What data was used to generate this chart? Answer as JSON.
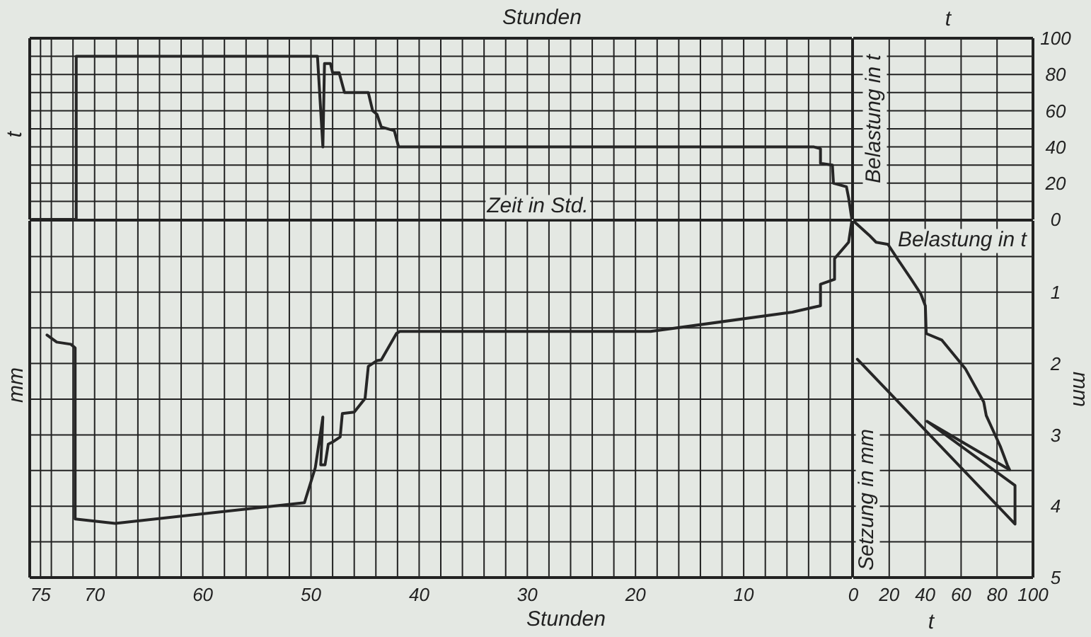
{
  "chart_data": [
    {
      "type": "line",
      "xlabel": "Stunden",
      "ylabel": "t",
      "annotations": [
        "Zeit in Std."
      ],
      "xlim": [
        76,
        0
      ],
      "ylim": [
        0,
        100
      ],
      "xticks": [
        {
          "value": 76,
          "label": null
        },
        75,
        {
          "value": 74,
          "label": null
        },
        {
          "value": 72,
          "label": null
        },
        70,
        {
          "value": 68,
          "label": null
        },
        {
          "value": 66,
          "label": null
        },
        {
          "value": 64,
          "label": null
        },
        {
          "value": 62,
          "label": null
        },
        60,
        {
          "value": 58,
          "label": null
        },
        {
          "value": 56,
          "label": null
        },
        {
          "value": 54,
          "label": null
        },
        {
          "value": 52,
          "label": null
        },
        50,
        {
          "value": 48,
          "label": null
        },
        {
          "value": 46,
          "label": null
        },
        {
          "value": 44,
          "label": null
        },
        {
          "value": 42,
          "label": null
        },
        40,
        {
          "value": 38,
          "label": null
        },
        {
          "value": 36,
          "label": null
        },
        {
          "value": 34,
          "label": null
        },
        {
          "value": 32,
          "label": null
        },
        30,
        {
          "value": 28,
          "label": null
        },
        {
          "value": 26,
          "label": null
        },
        {
          "value": 24,
          "label": null
        },
        {
          "value": 22,
          "label": null
        },
        20,
        {
          "value": 18,
          "label": null
        },
        {
          "value": 16,
          "label": null
        },
        {
          "value": 14,
          "label": null
        },
        {
          "value": 12,
          "label": null
        },
        10,
        {
          "value": 8,
          "label": null
        },
        {
          "value": 6,
          "label": null
        },
        {
          "value": 4,
          "label": null
        },
        {
          "value": 2,
          "label": null
        },
        {
          "value": 0,
          "label": null
        }
      ],
      "yticks": [
        0,
        {
          "value": 10,
          "label": null
        },
        20,
        {
          "value": 30,
          "label": null
        },
        40,
        {
          "value": 50,
          "label": null
        },
        60,
        {
          "value": 70,
          "label": null
        },
        80,
        {
          "value": 90,
          "label": null
        },
        100
      ],
      "grid": true,
      "tick_labels": false,
      "series": [
        {
          "type": "line",
          "color": "#262626",
          "x": [
            75.8,
            71.7,
            71.7,
            49.4,
            48.9,
            48.75,
            48.2,
            48.0,
            47.4,
            46.9,
            44.7,
            44.3,
            43.9,
            43.5,
            42.3,
            41.9,
            3.5,
            2.9,
            2.9,
            1.8,
            1.7,
            0.5,
            0.3,
            0
          ],
          "values": [
            0,
            0,
            90,
            90,
            40,
            86,
            86,
            81,
            81,
            70,
            70,
            60,
            58,
            51,
            49,
            40,
            40,
            39,
            31,
            30,
            20,
            18,
            12,
            0
          ]
        }
      ]
    },
    {
      "type": "line",
      "xlabel": "t",
      "annotations": [
        "Belastung in t"
      ],
      "xlim": [
        0,
        100
      ],
      "ylim": [
        0,
        100
      ],
      "xticks": [
        0,
        20,
        40,
        60,
        80,
        100
      ],
      "yticks": [
        0,
        {
          "value": 10,
          "label": null
        },
        20,
        {
          "value": 30,
          "label": null
        },
        40,
        {
          "value": 50,
          "label": null
        },
        60,
        {
          "value": 70,
          "label": null
        },
        80,
        {
          "value": 90,
          "label": null
        },
        100
      ],
      "grid": true,
      "tick_labels": "y"
    },
    {
      "type": "line",
      "xlabel": "Stunden",
      "ylabel": "mm",
      "xlim": [
        76,
        0
      ],
      "ylim": [
        5,
        0
      ],
      "xticks": [
        {
          "value": 76,
          "label": null
        },
        75,
        {
          "value": 74,
          "label": null
        },
        {
          "value": 72,
          "label": null
        },
        70,
        {
          "value": 68,
          "label": null
        },
        {
          "value": 66,
          "label": null
        },
        {
          "value": 64,
          "label": null
        },
        {
          "value": 62,
          "label": null
        },
        60,
        {
          "value": 58,
          "label": null
        },
        {
          "value": 56,
          "label": null
        },
        {
          "value": 54,
          "label": null
        },
        {
          "value": 52,
          "label": null
        },
        50,
        {
          "value": 48,
          "label": null
        },
        {
          "value": 46,
          "label": null
        },
        {
          "value": 44,
          "label": null
        },
        {
          "value": 42,
          "label": null
        },
        40,
        {
          "value": 38,
          "label": null
        },
        {
          "value": 36,
          "label": null
        },
        {
          "value": 34,
          "label": null
        },
        {
          "value": 32,
          "label": null
        },
        30,
        {
          "value": 28,
          "label": null
        },
        {
          "value": 26,
          "label": null
        },
        {
          "value": 24,
          "label": null
        },
        {
          "value": 22,
          "label": null
        },
        20,
        {
          "value": 18,
          "label": null
        },
        {
          "value": 16,
          "label": null
        },
        {
          "value": 14,
          "label": null
        },
        {
          "value": 12,
          "label": null
        },
        10,
        {
          "value": 8,
          "label": null
        },
        {
          "value": 6,
          "label": null
        },
        {
          "value": 4,
          "label": null
        },
        {
          "value": 2,
          "label": null
        },
        {
          "value": 0,
          "label": null
        }
      ],
      "yticks": [
        {
          "value": 0,
          "label": null
        },
        {
          "value": 0.5,
          "label": null
        },
        1,
        {
          "value": 1.5,
          "label": null
        },
        2,
        {
          "value": 2.5,
          "label": null
        },
        3,
        {
          "value": 3.5,
          "label": null
        },
        4,
        {
          "value": 4.5,
          "label": null
        },
        5
      ],
      "grid": true,
      "tick_labels": "x",
      "series": [
        {
          "type": "line",
          "color": "#262626",
          "x": [
            74.4,
            73.5,
            72.2,
            71.8,
            71.8,
            68.1,
            50.6,
            49.6,
            48.9,
            49.1,
            48.7,
            48.4,
            48.0,
            47.3,
            47.1,
            46.0,
            45.0,
            44.7,
            43.9,
            43.5,
            42.1,
            41.8,
            18.6,
            5.5,
            3.5,
            2.9,
            2.9,
            1.6,
            1.6,
            0.3,
            0
          ],
          "values": [
            1.6,
            1.7,
            1.73,
            1.78,
            4.18,
            4.24,
            3.95,
            3.46,
            2.75,
            3.42,
            3.42,
            3.13,
            3.1,
            3.03,
            2.7,
            2.68,
            2.49,
            2.04,
            1.96,
            1.95,
            1.58,
            1.55,
            1.55,
            1.28,
            1.21,
            1.19,
            0.89,
            0.82,
            0.53,
            0.3,
            0
          ]
        }
      ]
    },
    {
      "type": "line",
      "xlabel": "t",
      "ylabel": "mm",
      "annotations": [
        "Belastung in t",
        "Setzung in mm"
      ],
      "xlim": [
        0,
        100
      ],
      "ylim": [
        5,
        0
      ],
      "xticks": [
        0,
        20,
        40,
        60,
        80,
        100
      ],
      "yticks": [
        {
          "value": 0,
          "label": null
        },
        {
          "value": 0.5,
          "label": null
        },
        1,
        {
          "value": 1.5,
          "label": null
        },
        2,
        {
          "value": 2.5,
          "label": null
        },
        3,
        {
          "value": 3.5,
          "label": null
        },
        4,
        {
          "value": 4.5,
          "label": null
        },
        5
      ],
      "grid": true,
      "series": [
        {
          "type": "line",
          "color": "#262626",
          "x": [
            0,
            8.8,
            12.7,
            19.3,
            24.5,
            32.3,
            37.5,
            40.1,
            40.6,
            49.2,
            62.3,
            72.6,
            74,
            81.8,
            85.7,
            87,
            41,
            90,
            90,
            2.3
          ],
          "values": [
            0,
            0.2,
            0.3,
            0.33,
            0.53,
            0.82,
            1.02,
            1.19,
            1.58,
            1.67,
            2.07,
            2.54,
            2.73,
            3.16,
            3.42,
            3.49,
            2.81,
            3.71,
            4.25,
            1.94
          ]
        }
      ]
    }
  ]
}
